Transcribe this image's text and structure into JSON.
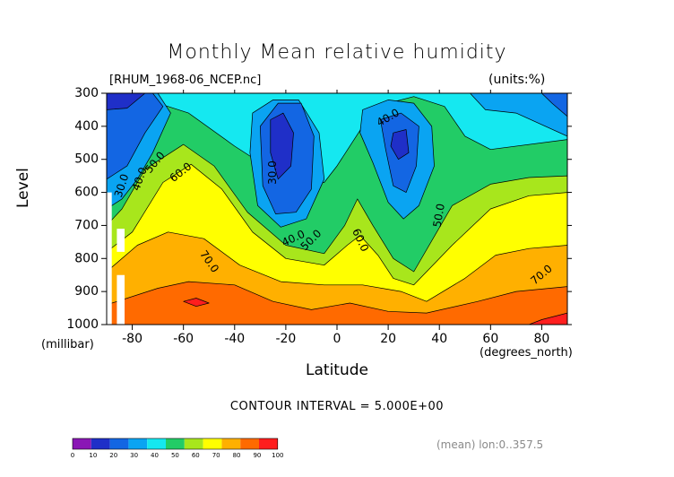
{
  "chart_data": {
    "type": "heatmap",
    "title": "Monthly Mean relative humidity",
    "file_label": "[RHUM_1968-06_NCEP.nc]",
    "units_label": "(units:%)",
    "xlabel": "Latitude",
    "xlabel_unit": "(degrees_north)",
    "ylabel": "Level",
    "ylabel_unit": "(millibar)",
    "xlim": [
      -90,
      90
    ],
    "ylim": [
      1000,
      300
    ],
    "x_ticks": [
      -80,
      -60,
      -40,
      -20,
      0,
      20,
      40,
      60,
      80
    ],
    "y_ticks": [
      300,
      400,
      500,
      600,
      700,
      800,
      900,
      1000
    ],
    "x_tick_labels": [
      "-80",
      "-60",
      "-40",
      "-20",
      "0",
      "20",
      "40",
      "60",
      "80"
    ],
    "y_tick_labels": [
      "300",
      "400",
      "500",
      "600",
      "700",
      "800",
      "900",
      "1000"
    ],
    "contour_interval_label": "CONTOUR INTERVAL = 5.000E+00",
    "contour_interval": 5,
    "grid": false,
    "legend_position": "bottom-left colorbar",
    "mean_note": "(mean) lon:0..357.5",
    "colorbar": {
      "boundaries": [
        0,
        10,
        20,
        30,
        40,
        50,
        60,
        70,
        80,
        90,
        100
      ],
      "labels": [
        "0",
        "10",
        "20",
        "30",
        "40",
        "50",
        "60",
        "70",
        "80",
        "90",
        "100"
      ],
      "colors": [
        "#8a16b5",
        "#1f2fc8",
        "#1366e3",
        "#0aa4f2",
        "#15e8f0",
        "#22cc66",
        "#a8e61c",
        "#ffff00",
        "#ffb000",
        "#ff6a00",
        "#ff1e1e"
      ]
    },
    "contour_labels": [
      {
        "text": "30.0",
        "lat": -84,
        "lev": 580,
        "angle": -72
      },
      {
        "text": "40.0",
        "lat": -77,
        "lev": 560,
        "angle": -70
      },
      {
        "text": "50.0",
        "lat": -71,
        "lev": 510,
        "angle": -50
      },
      {
        "text": "60.0",
        "lat": -61,
        "lev": 540,
        "angle": -38
      },
      {
        "text": "30.0",
        "lat": -25,
        "lev": 540,
        "angle": -90
      },
      {
        "text": "40.0",
        "lat": -17,
        "lev": 740,
        "angle": -25
      },
      {
        "text": "50.0",
        "lat": -10,
        "lev": 745,
        "angle": -45
      },
      {
        "text": "60.0",
        "lat": 9,
        "lev": 745,
        "angle": 65
      },
      {
        "text": "70.0",
        "lat": -50,
        "lev": 810,
        "angle": 55
      },
      {
        "text": "40.0",
        "lat": 20,
        "lev": 375,
        "angle": -30
      },
      {
        "text": "50.0",
        "lat": 40,
        "lev": 670,
        "angle": -80
      },
      {
        "text": "70.0",
        "lat": 80,
        "lev": 850,
        "angle": -40
      }
    ],
    "regions": [
      {
        "value_range": [
          40,
          50
        ],
        "color": "#15e8f0",
        "points": [
          [
            -90,
            300
          ],
          [
            90,
            300
          ],
          [
            90,
            1000
          ],
          [
            -90,
            1000
          ]
        ]
      },
      {
        "value_range": [
          50,
          60
        ],
        "color": "#22cc66",
        "points": [
          [
            -90,
            530
          ],
          [
            -80,
            400
          ],
          [
            -70,
            330
          ],
          [
            -58,
            360
          ],
          [
            -40,
            460
          ],
          [
            -20,
            560
          ],
          [
            -5,
            570
          ],
          [
            0,
            520
          ],
          [
            10,
            400
          ],
          [
            20,
            330
          ],
          [
            30,
            310
          ],
          [
            42,
            340
          ],
          [
            50,
            430
          ],
          [
            60,
            470
          ],
          [
            90,
            440
          ],
          [
            90,
            1000
          ],
          [
            -90,
            1000
          ]
        ]
      },
      {
        "value_range": [
          60,
          70
        ],
        "color": "#a8e61c",
        "points": [
          [
            -90,
            700
          ],
          [
            -84,
            650
          ],
          [
            -75,
            530
          ],
          [
            -60,
            455
          ],
          [
            -48,
            520
          ],
          [
            -35,
            660
          ],
          [
            -20,
            760
          ],
          [
            -5,
            785
          ],
          [
            3,
            700
          ],
          [
            8,
            620
          ],
          [
            14,
            700
          ],
          [
            22,
            800
          ],
          [
            30,
            840
          ],
          [
            45,
            640
          ],
          [
            60,
            575
          ],
          [
            75,
            555
          ],
          [
            90,
            550
          ],
          [
            90,
            1000
          ],
          [
            -90,
            1000
          ]
        ]
      },
      {
        "value_range": [
          70,
          80
        ],
        "color": "#ffff00",
        "points": [
          [
            -90,
            780
          ],
          [
            -80,
            720
          ],
          [
            -68,
            570
          ],
          [
            -57,
            515
          ],
          [
            -45,
            590
          ],
          [
            -33,
            720
          ],
          [
            -20,
            800
          ],
          [
            -5,
            820
          ],
          [
            4,
            760
          ],
          [
            9,
            730
          ],
          [
            16,
            790
          ],
          [
            22,
            860
          ],
          [
            30,
            880
          ],
          [
            45,
            760
          ],
          [
            60,
            650
          ],
          [
            75,
            610
          ],
          [
            90,
            600
          ],
          [
            90,
            1000
          ],
          [
            -90,
            1000
          ]
        ]
      },
      {
        "value_range": [
          80,
          90
        ],
        "color": "#ffb000",
        "points": [
          [
            -90,
            840
          ],
          [
            -78,
            760
          ],
          [
            -66,
            720
          ],
          [
            -52,
            740
          ],
          [
            -38,
            820
          ],
          [
            -22,
            870
          ],
          [
            -5,
            880
          ],
          [
            10,
            880
          ],
          [
            25,
            900
          ],
          [
            35,
            930
          ],
          [
            50,
            860
          ],
          [
            62,
            790
          ],
          [
            75,
            770
          ],
          [
            90,
            760
          ],
          [
            90,
            1000
          ],
          [
            -90,
            1000
          ]
        ]
      },
      {
        "value_range": [
          90,
          100
        ],
        "color": "#ff6a00",
        "points": [
          [
            -90,
            940
          ],
          [
            -70,
            890
          ],
          [
            -58,
            870
          ],
          [
            -40,
            880
          ],
          [
            -25,
            930
          ],
          [
            -10,
            955
          ],
          [
            5,
            935
          ],
          [
            20,
            960
          ],
          [
            35,
            965
          ],
          [
            55,
            930
          ],
          [
            70,
            900
          ],
          [
            90,
            885
          ],
          [
            90,
            1000
          ],
          [
            -90,
            1000
          ]
        ]
      },
      {
        "value_range": [
          90,
          100
        ],
        "color": "#ff1e1e",
        "points": [
          [
            -60,
            930
          ],
          [
            -55,
            920
          ],
          [
            -50,
            935
          ],
          [
            -55,
            945
          ]
        ]
      },
      {
        "value_range": [
          90,
          100
        ],
        "color": "#ff1e1e",
        "points": [
          [
            80,
            985
          ],
          [
            90,
            965
          ],
          [
            90,
            1000
          ],
          [
            75,
            1000
          ]
        ]
      },
      {
        "value_range": [
          30,
          40
        ],
        "color": "#0aa4f2",
        "points": [
          [
            -90,
            300
          ],
          [
            -70,
            300
          ],
          [
            -65,
            360
          ],
          [
            -72,
            480
          ],
          [
            -78,
            560
          ],
          [
            -84,
            620
          ],
          [
            -90,
            650
          ]
        ]
      },
      {
        "value_range": [
          30,
          40
        ],
        "color": "#0aa4f2",
        "points": [
          [
            -33,
            360
          ],
          [
            -25,
            320
          ],
          [
            -15,
            320
          ],
          [
            -7,
            420
          ],
          [
            -5,
            560
          ],
          [
            -12,
            680
          ],
          [
            -22,
            705
          ],
          [
            -31,
            640
          ],
          [
            -34,
            480
          ]
        ]
      },
      {
        "value_range": [
          30,
          40
        ],
        "color": "#0aa4f2",
        "points": [
          [
            10,
            350
          ],
          [
            20,
            320
          ],
          [
            30,
            330
          ],
          [
            37,
            400
          ],
          [
            38,
            520
          ],
          [
            32,
            640
          ],
          [
            26,
            680
          ],
          [
            20,
            630
          ],
          [
            14,
            510
          ],
          [
            9,
            420
          ]
        ]
      },
      {
        "value_range": [
          30,
          40
        ],
        "color": "#0aa4f2",
        "points": [
          [
            52,
            300
          ],
          [
            90,
            300
          ],
          [
            90,
            430
          ],
          [
            70,
            360
          ],
          [
            58,
            350
          ]
        ]
      },
      {
        "value_range": [
          20,
          30
        ],
        "color": "#1366e3",
        "points": [
          [
            -90,
            300
          ],
          [
            -72,
            300
          ],
          [
            -68,
            340
          ],
          [
            -75,
            420
          ],
          [
            -82,
            520
          ],
          [
            -90,
            560
          ]
        ]
      },
      {
        "value_range": [
          20,
          30
        ],
        "color": "#1366e3",
        "points": [
          [
            -30,
            400
          ],
          [
            -23,
            330
          ],
          [
            -14,
            330
          ],
          [
            -9,
            430
          ],
          [
            -10,
            590
          ],
          [
            -16,
            660
          ],
          [
            -24,
            665
          ],
          [
            -29,
            580
          ]
        ]
      },
      {
        "value_range": [
          20,
          30
        ],
        "color": "#1366e3",
        "points": [
          [
            17,
            380
          ],
          [
            25,
            360
          ],
          [
            32,
            400
          ],
          [
            31,
            520
          ],
          [
            27,
            600
          ],
          [
            22,
            580
          ],
          [
            19,
            470
          ]
        ]
      },
      {
        "value_range": [
          20,
          30
        ],
        "color": "#1366e3",
        "points": [
          [
            80,
            300
          ],
          [
            90,
            300
          ],
          [
            90,
            370
          ],
          [
            84,
            330
          ]
        ]
      },
      {
        "value_range": [
          10,
          20
        ],
        "color": "#1f2fc8",
        "points": [
          [
            -90,
            300
          ],
          [
            -75,
            300
          ],
          [
            -82,
            345
          ],
          [
            -90,
            350
          ]
        ]
      },
      {
        "value_range": [
          10,
          20
        ],
        "color": "#1f2fc8",
        "points": [
          [
            -26,
            380
          ],
          [
            -21,
            360
          ],
          [
            -17,
            420
          ],
          [
            -18,
            520
          ],
          [
            -23,
            560
          ],
          [
            -26,
            480
          ]
        ]
      },
      {
        "value_range": [
          10,
          20
        ],
        "color": "#1f2fc8",
        "points": [
          [
            22,
            420
          ],
          [
            27,
            410
          ],
          [
            28,
            480
          ],
          [
            24,
            500
          ],
          [
            21,
            460
          ]
        ]
      }
    ],
    "missing_regions": [
      {
        "points": [
          [
            -90,
            600
          ],
          [
            -88,
            600
          ],
          [
            -88,
            1000
          ],
          [
            -90,
            1000
          ]
        ]
      },
      {
        "points": [
          [
            -86,
            710
          ],
          [
            -83,
            710
          ],
          [
            -83,
            780
          ],
          [
            -86,
            780
          ]
        ]
      },
      {
        "points": [
          [
            -86,
            850
          ],
          [
            -83,
            850
          ],
          [
            -83,
            1000
          ],
          [
            -86,
            1000
          ]
        ]
      }
    ]
  }
}
